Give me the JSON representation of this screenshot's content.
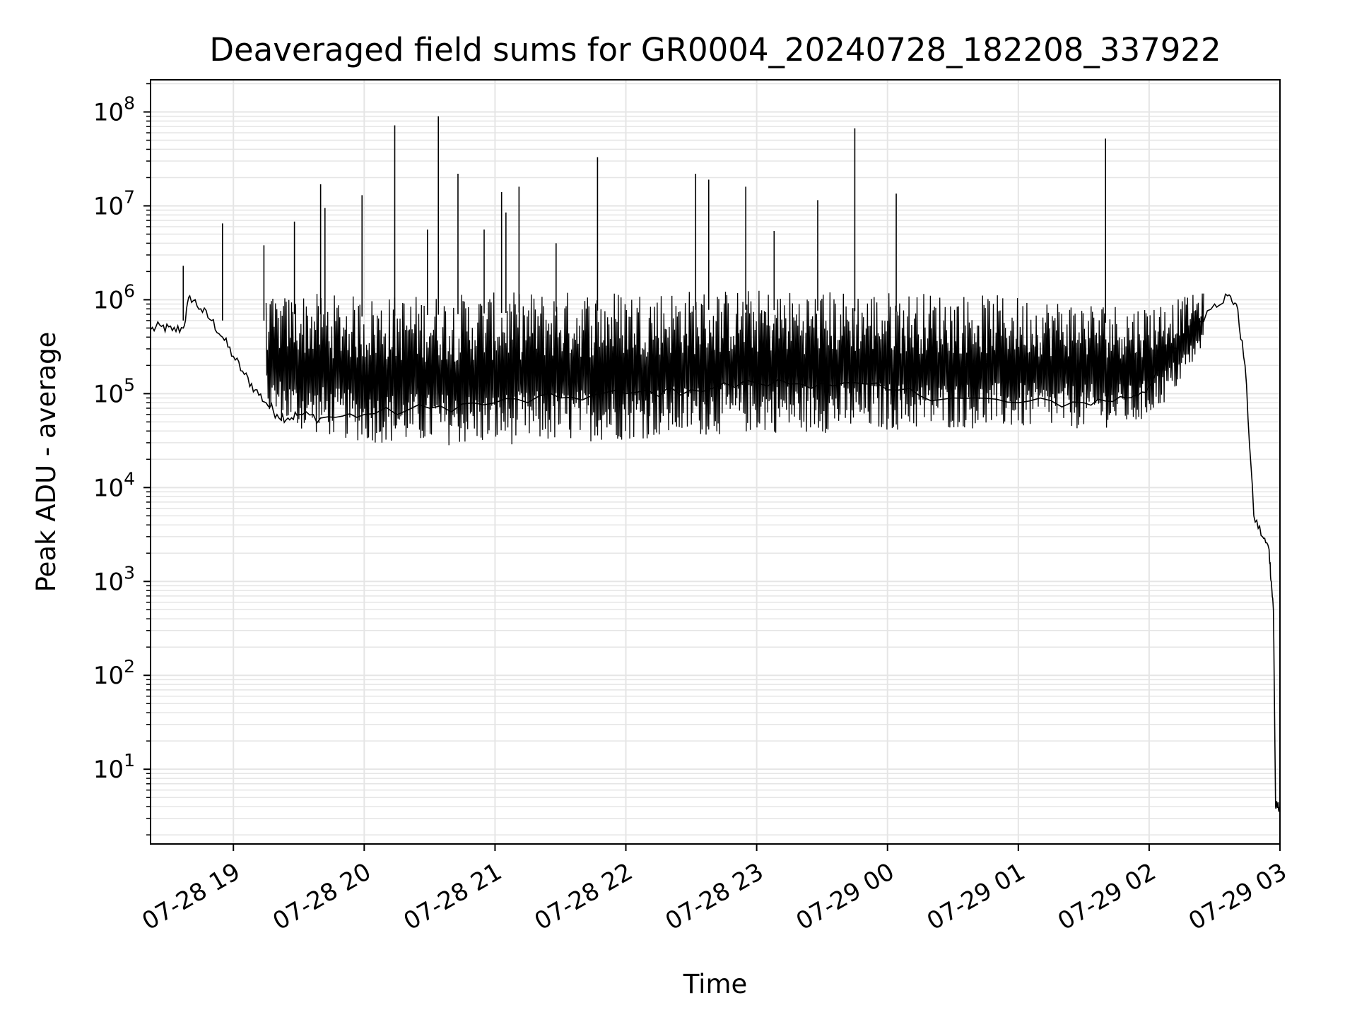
{
  "chart_data": {
    "type": "line",
    "title": "Deaveraged field sums for GR0004_20240728_182208_337922",
    "xlabel": "Time",
    "ylabel": "Peak ADU - average",
    "y_scale": "log",
    "ylim": [
      1.6,
      220000000.0
    ],
    "xlim": [
      "2024-07-28 18:22",
      "2024-07-29 03:00"
    ],
    "grid": true,
    "line_color": "#000000",
    "grid_color": "#e5e5e5",
    "x_ticks": [
      {
        "time": "2024-07-28 19:00",
        "label": "07-28 19"
      },
      {
        "time": "2024-07-28 20:00",
        "label": "07-28 20"
      },
      {
        "time": "2024-07-28 21:00",
        "label": "07-28 21"
      },
      {
        "time": "2024-07-28 22:00",
        "label": "07-28 22"
      },
      {
        "time": "2024-07-28 23:00",
        "label": "07-28 23"
      },
      {
        "time": "2024-07-29 00:00",
        "label": "07-29 00"
      },
      {
        "time": "2024-07-29 01:00",
        "label": "07-29 01"
      },
      {
        "time": "2024-07-29 02:00",
        "label": "07-29 02"
      },
      {
        "time": "2024-07-29 03:00",
        "label": "07-29 03"
      }
    ],
    "y_ticks": [
      {
        "value": 10,
        "base": "10",
        "exp": "1"
      },
      {
        "value": 100,
        "base": "10",
        "exp": "2"
      },
      {
        "value": 1000,
        "base": "10",
        "exp": "3"
      },
      {
        "value": 10000,
        "base": "10",
        "exp": "4"
      },
      {
        "value": 100000,
        "base": "10",
        "exp": "5"
      },
      {
        "value": 1000000,
        "base": "10",
        "exp": "6"
      },
      {
        "value": 10000000,
        "base": "10",
        "exp": "7"
      },
      {
        "value": 100000000,
        "base": "10",
        "exp": "8"
      }
    ],
    "series": [
      {
        "style": "line",
        "x": [
          "2024-07-28 18:22",
          "2024-07-28 18:27",
          "2024-07-28 18:32",
          "2024-07-28 18:37",
          "2024-07-28 18:40",
          "2024-07-28 18:45",
          "2024-07-28 18:50",
          "2024-07-28 18:55",
          "2024-07-28 19:00",
          "2024-07-28 19:05",
          "2024-07-28 19:10",
          "2024-07-28 19:15",
          "2024-07-28 19:20",
          "2024-07-28 19:25",
          "2024-07-28 19:30",
          "2024-07-28 19:40",
          "2024-07-28 20:00",
          "2024-07-28 20:30",
          "2024-07-28 21:00",
          "2024-07-28 21:30",
          "2024-07-28 22:00",
          "2024-07-28 22:30",
          "2024-07-28 23:00",
          "2024-07-28 23:30",
          "2024-07-29 00:00",
          "2024-07-29 00:30",
          "2024-07-29 01:00",
          "2024-07-29 01:30",
          "2024-07-29 01:50",
          "2024-07-29 02:00",
          "2024-07-29 02:10",
          "2024-07-29 02:20",
          "2024-07-29 02:30",
          "2024-07-29 02:36",
          "2024-07-29 02:40",
          "2024-07-29 02:44",
          "2024-07-29 02:48",
          "2024-07-29 02:52",
          "2024-07-29 02:55",
          "2024-07-29 02:56",
          "2024-07-29 02:57",
          "2024-07-29 02:58",
          "2024-07-29 02:59",
          "2024-07-29 03:00"
        ],
        "y": [
          480000,
          520000,
          470000,
          500000,
          1100000,
          800000,
          600000,
          400000,
          250000,
          160000,
          110000,
          80000,
          60000,
          55000,
          60000,
          55000,
          60000,
          70000,
          80000,
          90000,
          100000,
          110000,
          130000,
          130000,
          110000,
          90000,
          80000,
          80000,
          90000,
          120000,
          250000,
          500000,
          900000,
          1100000,
          900000,
          200000,
          5000,
          3000,
          2200,
          1000,
          500,
          4,
          4,
          4
        ]
      },
      {
        "style": "oscillation",
        "comment": "dense rapid oscillation band between a low and a high envelope",
        "x_start": "2024-07-28 19:15",
        "x_end": "2024-07-29 02:25",
        "low": [
          [
            "2024-07-28 19:15",
            60000
          ],
          [
            "2024-07-28 19:30",
            40000
          ],
          [
            "2024-07-28 20:00",
            30000
          ],
          [
            "2024-07-28 20:30",
            28000
          ],
          [
            "2024-07-28 21:00",
            28000
          ],
          [
            "2024-07-28 21:30",
            30000
          ],
          [
            "2024-07-28 22:00",
            32000
          ],
          [
            "2024-07-28 22:30",
            35000
          ],
          [
            "2024-07-28 23:00",
            38000
          ],
          [
            "2024-07-28 23:30",
            38000
          ],
          [
            "2024-07-29 00:00",
            40000
          ],
          [
            "2024-07-29 00:30",
            42000
          ],
          [
            "2024-07-29 01:00",
            42000
          ],
          [
            "2024-07-29 01:30",
            42000
          ],
          [
            "2024-07-29 01:55",
            45000
          ],
          [
            "2024-07-29 02:10",
            90000
          ],
          [
            "2024-07-29 02:25",
            300000
          ]
        ],
        "high": [
          [
            "2024-07-28 19:15",
            1000000
          ],
          [
            "2024-07-28 19:30",
            1200000
          ],
          [
            "2024-07-28 20:00",
            1100000
          ],
          [
            "2024-07-28 21:00",
            1200000
          ],
          [
            "2024-07-28 22:00",
            1300000
          ],
          [
            "2024-07-28 23:00",
            1300000
          ],
          [
            "2024-07-29 00:00",
            1250000
          ],
          [
            "2024-07-29 01:00",
            1100000
          ],
          [
            "2024-07-29 01:55",
            900000
          ],
          [
            "2024-07-29 02:10",
            1000000
          ],
          [
            "2024-07-29 02:25",
            1200000
          ]
        ]
      },
      {
        "style": "spikes",
        "x": [
          "2024-07-28 18:37",
          "2024-07-28 18:55",
          "2024-07-28 19:14",
          "2024-07-28 19:28",
          "2024-07-28 19:40",
          "2024-07-28 19:42",
          "2024-07-28 19:59",
          "2024-07-28 20:14",
          "2024-07-28 20:29",
          "2024-07-28 20:34",
          "2024-07-28 20:43",
          "2024-07-28 20:55",
          "2024-07-28 21:03",
          "2024-07-28 21:05",
          "2024-07-28 21:11",
          "2024-07-28 21:28",
          "2024-07-28 21:47",
          "2024-07-28 22:32",
          "2024-07-28 22:38",
          "2024-07-28 22:55",
          "2024-07-28 23:08",
          "2024-07-28 23:28",
          "2024-07-28 23:45",
          "2024-07-29 00:04",
          "2024-07-29 01:40"
        ],
        "y": [
          2300000,
          6500000,
          3800000,
          6800000,
          17000000,
          9500000,
          13000000,
          72000000,
          5600000,
          90000000,
          22000000,
          5600000,
          14000000,
          8500000,
          16000000,
          4000000,
          33000000,
          22000000,
          19000000,
          16000000,
          5400000,
          11500000,
          67000000,
          13500000,
          52000000
        ]
      }
    ]
  }
}
